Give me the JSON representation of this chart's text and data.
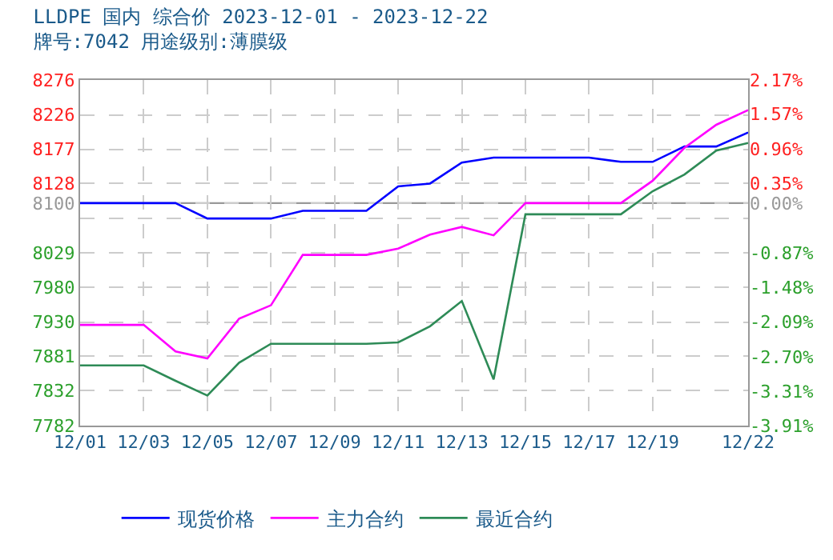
{
  "chart_data": {
    "type": "line",
    "title": "LLDPE 国内 综合价 2023-12-01 - 2023-12-22",
    "subtitle": "牌号:7042 用途级别:薄膜级",
    "x": [
      "2023-12-01",
      "2023-12-02",
      "2023-12-03",
      "2023-12-04",
      "2023-12-05",
      "2023-12-06",
      "2023-12-07",
      "2023-12-08",
      "2023-12-09",
      "2023-12-10",
      "2023-12-11",
      "2023-12-12",
      "2023-12-13",
      "2023-12-14",
      "2023-12-15",
      "2023-12-16",
      "2023-12-17",
      "2023-12-18",
      "2023-12-19",
      "2023-12-20",
      "2023-12-21",
      "2023-12-22"
    ],
    "series": [
      {
        "name": "现货价格",
        "color": "#0000ff",
        "values": [
          8100,
          8100,
          8100,
          8100,
          8078,
          8078,
          8078,
          8089,
          8089,
          8089,
          8124,
          8128,
          8158,
          8165,
          8165,
          8165,
          8165,
          8159,
          8159,
          8181,
          8181,
          8201
        ]
      },
      {
        "name": "主力合约",
        "color": "#ff00ff",
        "values": [
          7926,
          7926,
          7926,
          7888,
          7878,
          7935,
          7954,
          8026,
          8026,
          8026,
          8035,
          8055,
          8066,
          8054,
          8100,
          8100,
          8100,
          8100,
          8132,
          8179,
          8212,
          8233
        ]
      },
      {
        "name": "最近合约",
        "color": "#2e8b57",
        "values": [
          7868,
          7868,
          7868,
          7846,
          7825,
          7872,
          7899,
          7899,
          7899,
          7899,
          7901,
          7924,
          7960,
          7848,
          8084,
          8084,
          8084,
          8084,
          8117,
          8141,
          8175,
          8186
        ]
      }
    ],
    "xlim": [
      "2023-12-01",
      "2023-12-22"
    ],
    "xticks": [
      {
        "value": "2023-12-01",
        "label": "12/01"
      },
      {
        "value": "2023-12-03",
        "label": "12/03"
      },
      {
        "value": "2023-12-05",
        "label": "12/05"
      },
      {
        "value": "2023-12-07",
        "label": "12/07"
      },
      {
        "value": "2023-12-09",
        "label": "12/09"
      },
      {
        "value": "2023-12-11",
        "label": "12/11"
      },
      {
        "value": "2023-12-13",
        "label": "12/13"
      },
      {
        "value": "2023-12-15",
        "label": "12/15"
      },
      {
        "value": "2023-12-17",
        "label": "12/17"
      },
      {
        "value": "2023-12-19",
        "label": "12/19"
      },
      {
        "value": "2023-12-22",
        "label": "12/22"
      }
    ],
    "ylim": [
      7782,
      8276
    ],
    "yticks": [
      8276,
      8226,
      8177,
      8128,
      8100,
      {
        "value": 8078,
        "label": null
      },
      8029,
      7980,
      7930,
      7881,
      7832,
      7782
    ],
    "y2lim": [
      -3.91,
      2.17
    ],
    "y2ticks": [
      {
        "value": 2.17,
        "label": "2.17%"
      },
      {
        "value": 1.57,
        "label": "1.57%"
      },
      {
        "value": 0.96,
        "label": "0.96%"
      },
      {
        "value": 0.35,
        "label": "0.35%"
      },
      {
        "value": 0.0,
        "label": "0.00%"
      },
      {
        "value": -0.87,
        "label": "-0.87%"
      },
      {
        "value": -1.48,
        "label": "-1.48%"
      },
      {
        "value": -2.09,
        "label": "-2.09%"
      },
      {
        "value": -2.7,
        "label": "-2.70%"
      },
      {
        "value": -3.31,
        "label": "-3.31%"
      },
      {
        "value": -3.91,
        "label": "-3.91%"
      }
    ],
    "ref_lines": [
      {
        "axis": "y",
        "value": 8100,
        "color": "#999999",
        "line_style": "solid"
      }
    ],
    "grid": true,
    "legend": "bottom",
    "marker": "none",
    "line_style": "solid"
  }
}
